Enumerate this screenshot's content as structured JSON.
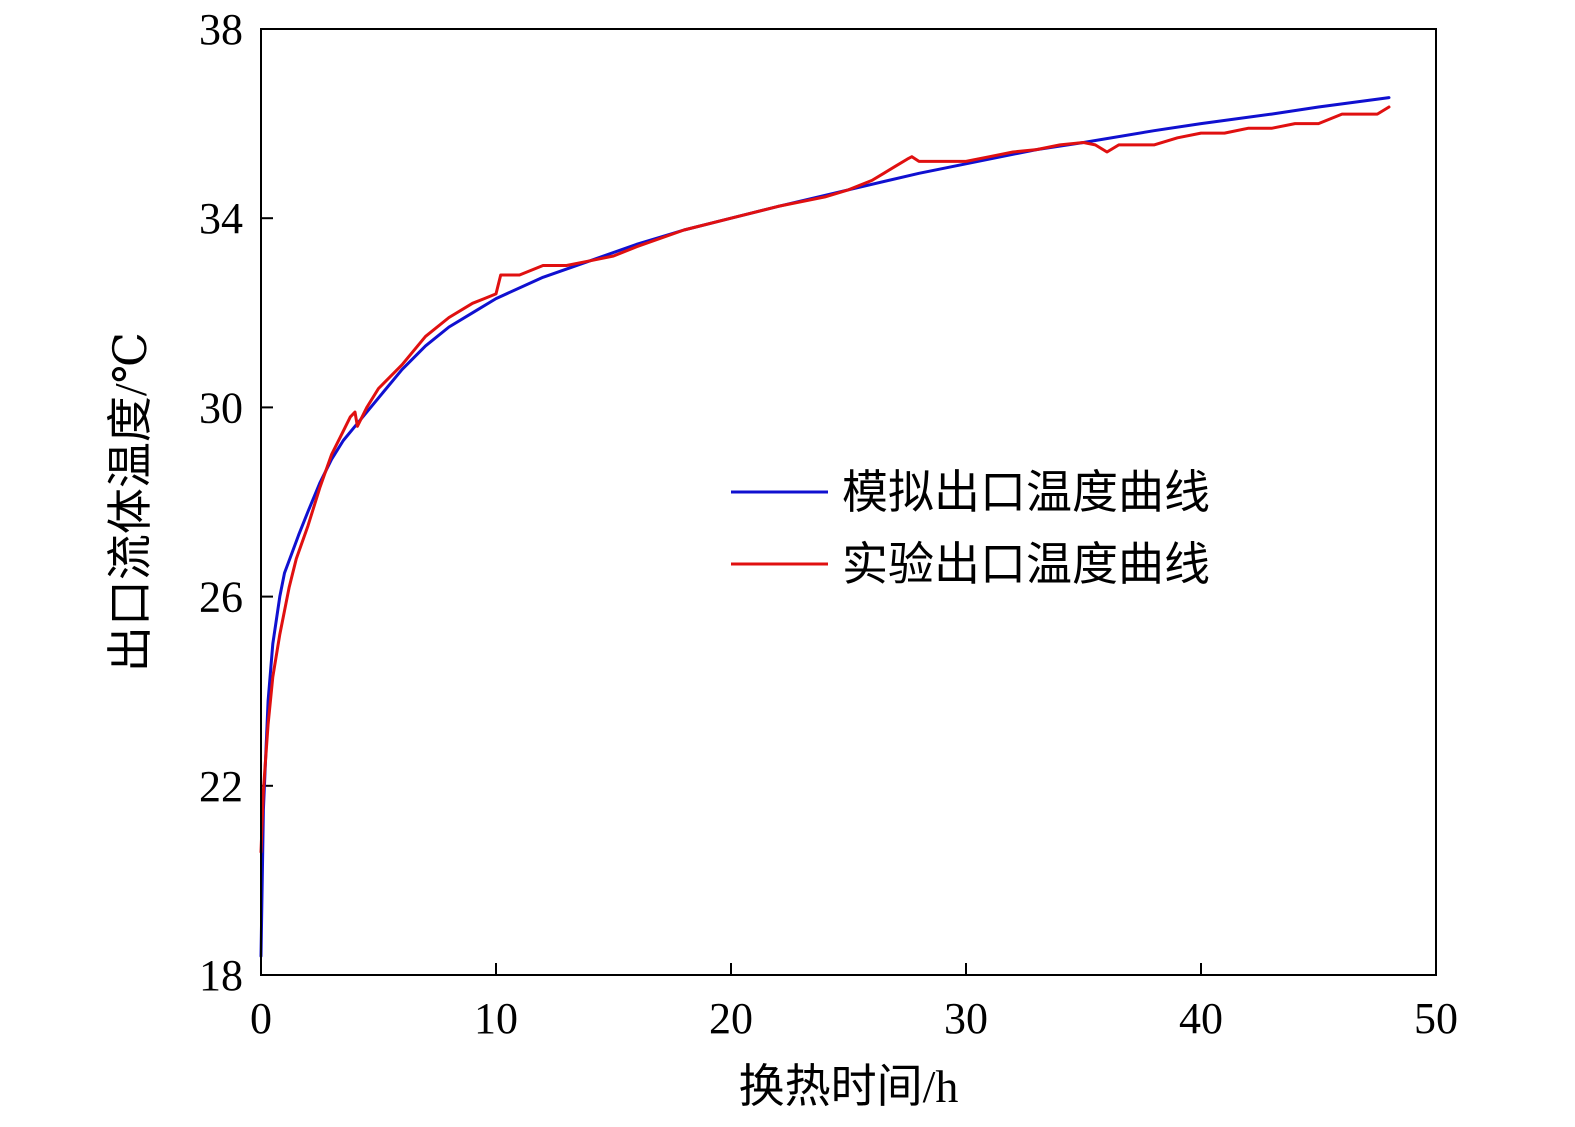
{
  "chart_data": {
    "type": "line",
    "title": "",
    "xlabel": "换热时间/h",
    "ylabel": "出口流体温度/℃",
    "xlim": [
      0,
      50
    ],
    "ylim": [
      18,
      38
    ],
    "xticks": [
      0,
      10,
      20,
      30,
      40,
      50
    ],
    "yticks": [
      18,
      22,
      26,
      30,
      34,
      38
    ],
    "grid": false,
    "legend_position": "center-right",
    "series": [
      {
        "name": "模拟出口温度曲线",
        "color": "#1010d0",
        "x": [
          0,
          0.1,
          0.3,
          0.5,
          0.8,
          1.0,
          1.3,
          1.6,
          2,
          2.5,
          3,
          3.5,
          4,
          4.5,
          5,
          6,
          7,
          8,
          9,
          10,
          12,
          14,
          16,
          18,
          20,
          22,
          25,
          28,
          30,
          33,
          35,
          38,
          40,
          43,
          45,
          48
        ],
        "y": [
          18.4,
          21.5,
          23.8,
          25.0,
          26.0,
          26.5,
          26.9,
          27.3,
          27.8,
          28.4,
          28.9,
          29.3,
          29.6,
          29.9,
          30.2,
          30.8,
          31.3,
          31.7,
          32.0,
          32.3,
          32.75,
          33.1,
          33.45,
          33.75,
          34.0,
          34.25,
          34.6,
          34.95,
          35.15,
          35.45,
          35.6,
          35.85,
          36.0,
          36.2,
          36.35,
          36.55
        ]
      },
      {
        "name": "实验出口温度曲线",
        "color": "#e01010",
        "x": [
          0,
          0.1,
          0.3,
          0.5,
          0.8,
          1.0,
          1.2,
          1.5,
          2,
          2.5,
          3,
          3.5,
          3.8,
          4.0,
          4.1,
          4.5,
          5,
          6,
          7,
          8,
          9,
          9.5,
          10,
          10.2,
          11,
          12,
          13,
          14,
          15,
          16,
          18,
          20,
          22,
          24,
          25,
          26,
          26.5,
          27,
          27.5,
          27.7,
          28,
          29,
          30,
          31,
          32,
          33,
          34,
          35,
          35.5,
          36,
          36.5,
          37,
          38,
          39,
          40,
          41,
          42,
          43,
          44,
          45,
          46,
          47,
          47.5,
          48
        ],
        "y": [
          20.6,
          21.9,
          23.3,
          24.3,
          25.2,
          25.7,
          26.2,
          26.8,
          27.5,
          28.3,
          29.0,
          29.5,
          29.8,
          29.9,
          29.6,
          30.0,
          30.4,
          30.9,
          31.5,
          31.9,
          32.2,
          32.3,
          32.4,
          32.8,
          32.8,
          33.0,
          33.0,
          33.1,
          33.2,
          33.4,
          33.75,
          34.0,
          34.25,
          34.45,
          34.6,
          34.8,
          34.95,
          35.1,
          35.25,
          35.3,
          35.2,
          35.2,
          35.2,
          35.3,
          35.4,
          35.45,
          35.55,
          35.6,
          35.55,
          35.4,
          35.55,
          35.55,
          35.55,
          35.7,
          35.8,
          35.8,
          35.9,
          35.9,
          36.0,
          36.0,
          36.2,
          36.2,
          36.2,
          36.35
        ]
      }
    ]
  }
}
